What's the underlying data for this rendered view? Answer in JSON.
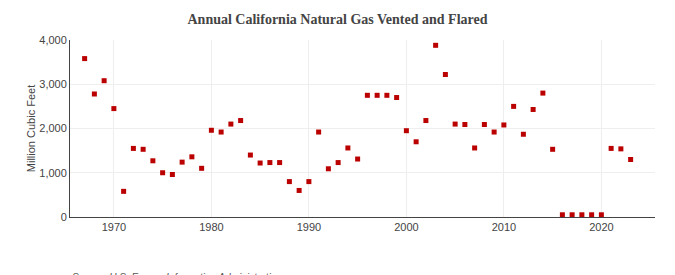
{
  "chart_data": {
    "type": "scatter",
    "title": "Annual California Natural Gas Vented and Flared",
    "ylabel": "Million Cubic Feet",
    "source": "Source: U.S. Energy Information Administration",
    "color": "#bb0000",
    "marker": "square",
    "x": [
      1967,
      1968,
      1969,
      1970,
      1971,
      1972,
      1973,
      1974,
      1975,
      1976,
      1977,
      1978,
      1979,
      1980,
      1981,
      1982,
      1983,
      1984,
      1985,
      1986,
      1987,
      1988,
      1989,
      1990,
      1991,
      1992,
      1993,
      1994,
      1995,
      1996,
      1997,
      1998,
      1999,
      2000,
      2001,
      2002,
      2003,
      2004,
      2005,
      2006,
      2007,
      2008,
      2009,
      2010,
      2011,
      2012,
      2013,
      2014,
      2015,
      2016,
      2017,
      2018,
      2019,
      2020,
      2021,
      2022,
      2023
    ],
    "values": [
      3580,
      2780,
      3080,
      2450,
      580,
      1550,
      1530,
      1270,
      1000,
      960,
      1240,
      1360,
      1100,
      1960,
      1920,
      2100,
      2180,
      1400,
      1220,
      1230,
      1230,
      800,
      600,
      800,
      1920,
      1090,
      1230,
      1560,
      1310,
      2750,
      2750,
      2750,
      2700,
      1950,
      1700,
      2180,
      3880,
      3220,
      2100,
      2090,
      1560,
      2090,
      1920,
      2080,
      2500,
      1870,
      2430,
      2800,
      1530,
      50,
      50,
      50,
      50,
      50,
      1550,
      1540,
      1300
    ],
    "xlim": [
      1965.5,
      2025.5
    ],
    "xticks": [
      1970,
      1980,
      1990,
      2000,
      2010,
      2020
    ],
    "ylim": [
      0,
      4000
    ],
    "yticks": [
      0,
      {
        "value": 1000,
        "label": "1,000"
      },
      {
        "value": 2000,
        "label": "2,000"
      },
      {
        "value": 3000,
        "label": "3,000"
      },
      {
        "value": 4000,
        "label": "4,000"
      }
    ],
    "grid": true
  }
}
